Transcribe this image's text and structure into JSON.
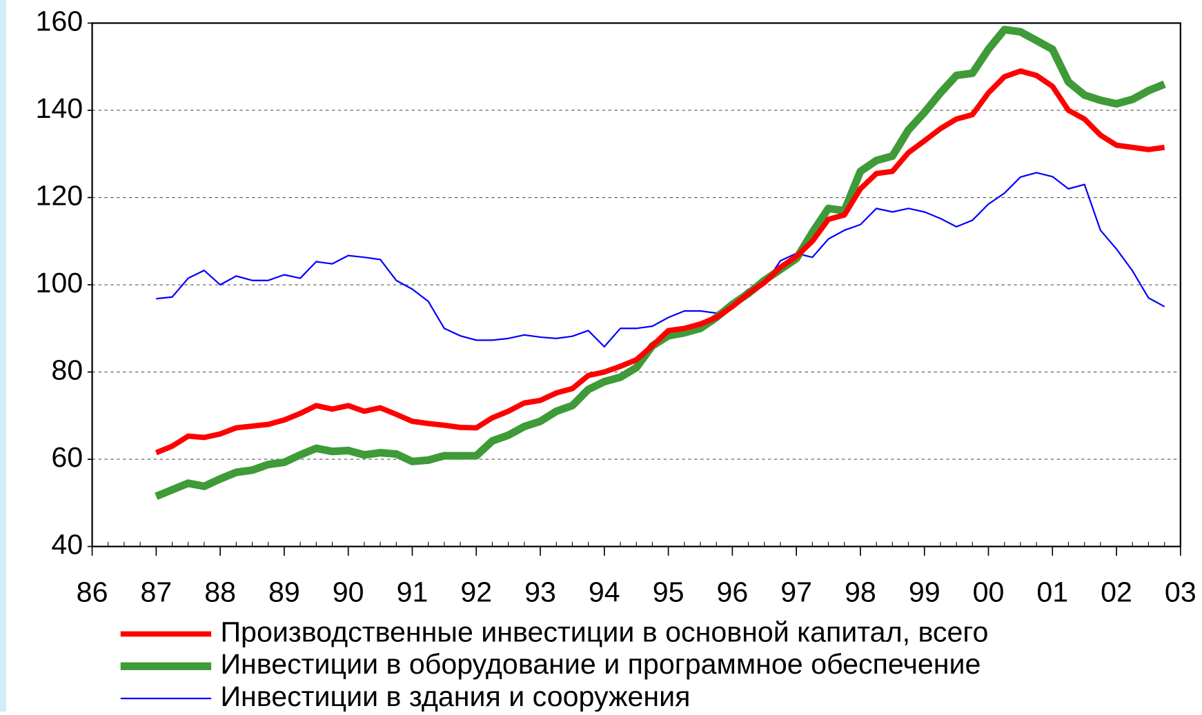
{
  "chart_data": {
    "type": "line",
    "xlim": [
      1986,
      2003
    ],
    "xticks": [
      {
        "value": 1986,
        "label": "86"
      },
      {
        "value": 1987,
        "label": "87"
      },
      {
        "value": 1988,
        "label": "88"
      },
      {
        "value": 1989,
        "label": "89"
      },
      {
        "value": 1990,
        "label": "90"
      },
      {
        "value": 1991,
        "label": "91"
      },
      {
        "value": 1992,
        "label": "92"
      },
      {
        "value": 1993,
        "label": "93"
      },
      {
        "value": 1994,
        "label": "94"
      },
      {
        "value": 1995,
        "label": "95"
      },
      {
        "value": 1996,
        "label": "96"
      },
      {
        "value": 1997,
        "label": "97"
      },
      {
        "value": 1998,
        "label": "98"
      },
      {
        "value": 1999,
        "label": "99"
      },
      {
        "value": 2000,
        "label": "00"
      },
      {
        "value": 2001,
        "label": "01"
      },
      {
        "value": 2002,
        "label": "02"
      },
      {
        "value": 2003,
        "label": "03"
      }
    ],
    "ylim": [
      40,
      160
    ],
    "yticks": [
      40,
      60,
      80,
      100,
      120,
      140,
      160
    ],
    "grid": true,
    "x": [
      1987,
      1987.25,
      1987.5,
      1987.75,
      1988,
      1988.25,
      1988.5,
      1988.75,
      1989,
      1989.25,
      1989.5,
      1989.75,
      1990,
      1990.25,
      1990.5,
      1990.75,
      1991,
      1991.25,
      1991.5,
      1991.75,
      1992,
      1992.25,
      1992.5,
      1992.75,
      1993,
      1993.25,
      1993.5,
      1993.75,
      1994,
      1994.25,
      1994.5,
      1994.75,
      1995,
      1995.25,
      1995.5,
      1995.75,
      1996,
      1996.25,
      1996.5,
      1996.75,
      1997,
      1997.25,
      1997.5,
      1997.75,
      1998,
      1998.25,
      1998.5,
      1998.75,
      1999,
      1999.25,
      1999.5,
      1999.75,
      2000,
      2000.25,
      2000.5,
      2000.75,
      2001,
      2001.25,
      2001.5,
      2001.75,
      2002,
      2002.25,
      2002.5,
      2002.75
    ],
    "series": [
      {
        "name": "Производственные инвестиции в основной капитал, всего",
        "color": "#ff0000",
        "width": 7,
        "values": [
          61.5,
          63,
          65.3,
          65,
          65.8,
          67.2,
          67.6,
          68,
          69,
          70.5,
          72.3,
          71.5,
          72.3,
          71,
          71.8,
          70.3,
          68.7,
          68.2,
          67.8,
          67.3,
          67.2,
          69.5,
          71,
          72.9,
          73.5,
          75.2,
          76.2,
          79.2,
          80,
          81.3,
          82.8,
          86,
          89.5,
          90,
          91,
          92.5,
          95,
          98,
          100.5,
          104,
          106.5,
          110,
          115,
          116,
          122,
          125.5,
          126,
          130.3,
          133,
          135.8,
          138,
          139,
          144,
          147.7,
          149,
          148,
          145.5,
          140,
          138,
          134.3,
          132,
          131.5,
          131,
          131.5
        ]
      },
      {
        "name": "Инвестиции в оборудование и программное обеспечение",
        "color": "#3f9a38",
        "width": 10,
        "values": [
          51.5,
          53,
          54.5,
          53.8,
          55.5,
          57,
          57.5,
          58.8,
          59.3,
          61,
          62.5,
          61.8,
          62,
          61,
          61.5,
          61.2,
          59.5,
          59.8,
          60.8,
          60.8,
          60.8,
          64.2,
          65.5,
          67.5,
          68.7,
          71,
          72.3,
          76,
          77.8,
          78.8,
          81,
          86,
          88.3,
          89,
          90,
          92.5,
          95.5,
          98,
          101,
          103.5,
          106,
          112,
          117.5,
          117,
          126,
          128.5,
          129.5,
          135.5,
          139.5,
          144,
          148,
          148.5,
          154,
          158.5,
          158,
          156,
          154,
          146.5,
          143.5,
          142.3,
          141.5,
          142.5,
          144.5,
          146
        ]
      },
      {
        "name": "Инвестиции в здания и сооружения",
        "color": "#0000ff",
        "width": 2,
        "values": [
          96.8,
          97.2,
          101.5,
          103.3,
          100,
          102,
          101,
          101,
          102.3,
          101.5,
          105.3,
          104.8,
          106.7,
          106.3,
          105.8,
          101,
          99,
          96.2,
          90,
          88.3,
          87.3,
          87.3,
          87.7,
          88.5,
          88,
          87.7,
          88.2,
          89.5,
          85.8,
          90,
          90,
          90.5,
          92.5,
          94,
          94,
          93.5,
          96,
          99,
          100,
          105.5,
          107.2,
          106.3,
          110.5,
          112.5,
          113.8,
          117.5,
          116.7,
          117.5,
          116.7,
          115.2,
          113.3,
          114.8,
          118.5,
          121,
          124.7,
          125.7,
          124.8,
          122,
          123,
          112.5,
          108.2,
          103.2,
          97,
          95
        ]
      }
    ]
  }
}
